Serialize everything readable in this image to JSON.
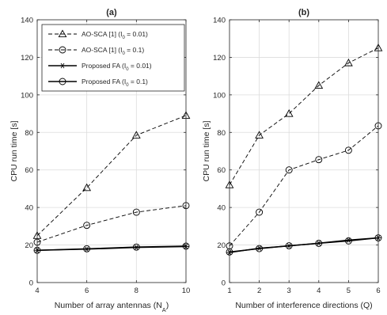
{
  "chart_data": [
    {
      "panel": "a",
      "type": "line",
      "title": "(a)",
      "xlabel": "Number of array antennas (N_A)",
      "ylabel": "CPU run time [s]",
      "xlim": [
        4,
        10
      ],
      "ylim": [
        0,
        140
      ],
      "xticks": [
        4,
        6,
        8,
        10
      ],
      "yticks": [
        0,
        20,
        40,
        60,
        80,
        100,
        120,
        140
      ],
      "grid": true,
      "legend_placement": "top-left",
      "x": [
        4,
        6,
        8,
        10
      ],
      "series": [
        {
          "name": "AO-SCA [1] (I0 = 0.01)",
          "values": [
            25,
            50.5,
            78.5,
            89
          ],
          "line": "dashed",
          "marker": "triangle"
        },
        {
          "name": "AO-SCA [1] (I0 = 0.1)",
          "values": [
            21.5,
            30.5,
            37.5,
            41
          ],
          "line": "dashed",
          "marker": "circle"
        },
        {
          "name": "Proposed FA (I0 = 0.01)",
          "values": [
            17.2,
            17.8,
            18.7,
            19.2
          ],
          "line": "solid",
          "marker": "asterisk"
        },
        {
          "name": "Proposed FA (I0 = 0.1)",
          "values": [
            17.2,
            18.0,
            18.9,
            19.4
          ],
          "line": "solid",
          "marker": "circle"
        }
      ]
    },
    {
      "panel": "b",
      "type": "line",
      "title": "(b)",
      "xlabel": "Number of interference directions (Q)",
      "ylabel": "CPU run time [s]",
      "xlim": [
        1,
        6
      ],
      "ylim": [
        0,
        140
      ],
      "xticks": [
        1,
        2,
        3,
        4,
        5,
        6
      ],
      "yticks": [
        0,
        20,
        40,
        60,
        80,
        100,
        120,
        140
      ],
      "grid": true,
      "x": [
        1,
        2,
        3,
        4,
        5,
        6
      ],
      "series": [
        {
          "name": "AO-SCA [1] (I0 = 0.01)",
          "values": [
            52,
            78.5,
            90,
            105,
            117,
            125
          ],
          "line": "dashed",
          "marker": "triangle"
        },
        {
          "name": "AO-SCA [1] (I0 = 0.1)",
          "values": [
            19.5,
            37.5,
            60,
            65.5,
            70.5,
            83.5
          ],
          "line": "dashed",
          "marker": "circle"
        },
        {
          "name": "Proposed FA (I0 = 0.01)",
          "values": [
            16,
            18.3,
            19.5,
            21,
            22.6,
            23.8
          ],
          "line": "solid",
          "marker": "asterisk"
        },
        {
          "name": "Proposed FA (I0 = 0.1)",
          "values": [
            16.3,
            18.1,
            19.6,
            20.9,
            22.2,
            23.8
          ],
          "line": "solid",
          "marker": "circle"
        }
      ]
    }
  ]
}
